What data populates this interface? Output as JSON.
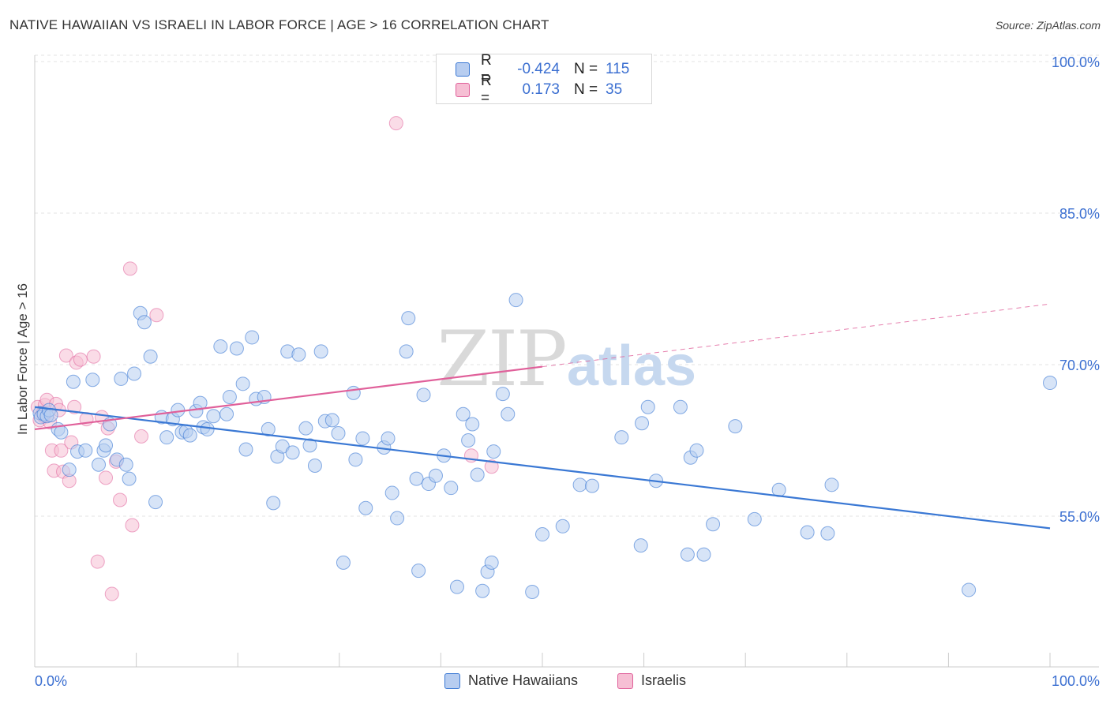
{
  "title": "NATIVE HAWAIIAN VS ISRAELI IN LABOR FORCE | AGE > 16 CORRELATION CHART",
  "source": "Source: ZipAtlas.com",
  "watermark": {
    "zip": "ZIP",
    "atlas": "atlas"
  },
  "colors": {
    "blue": "#3a78d4",
    "blue_fill": "#b7cdf0",
    "pink": "#e0609a",
    "pink_fill": "#f6bfd4",
    "axis_text": "#3b6fd1"
  },
  "legend": {
    "rows": [
      {
        "r_label": "R =",
        "r_value": "-0.424",
        "n_label": "N =",
        "n_value": "115"
      },
      {
        "r_label": "R =",
        "r_value": "0.173",
        "n_label": "N =",
        "n_value": "35"
      }
    ]
  },
  "bottom_legend": {
    "series1": "Native Hawaiians",
    "series2": "Israelis"
  },
  "chart_data": {
    "type": "scatter",
    "title": "NATIVE HAWAIIAN VS ISRAELI IN LABOR FORCE | AGE > 16 CORRELATION CHART",
    "xlabel": "",
    "ylabel": "In Labor Force | Age > 16",
    "xlim": [
      0,
      100
    ],
    "ylim": [
      40,
      102
    ],
    "x_tick_labels": [
      "0.0%",
      "100.0%"
    ],
    "y_tick_labels": [
      "55.0%",
      "70.0%",
      "85.0%",
      "100.0%"
    ],
    "y_ticks": [
      55,
      70,
      85,
      100
    ],
    "grid": true,
    "legend_position": "top-center",
    "series": [
      {
        "name": "Native Hawaiians",
        "r": -0.424,
        "n": 115,
        "trend": {
          "x": [
            0,
            100
          ],
          "y": [
            65.8,
            53.8
          ]
        },
        "points": [
          [
            0.5,
            65.2
          ],
          [
            0.6,
            64.8
          ],
          [
            0.9,
            65.1
          ],
          [
            1.2,
            64.9
          ],
          [
            1.4,
            65.5
          ],
          [
            1.6,
            65.0
          ],
          [
            2.3,
            63.6
          ],
          [
            2.6,
            63.3
          ],
          [
            3.4,
            59.6
          ],
          [
            3.8,
            68.3
          ],
          [
            4.2,
            61.4
          ],
          [
            5.0,
            61.5
          ],
          [
            5.7,
            68.5
          ],
          [
            6.3,
            60.1
          ],
          [
            6.8,
            61.5
          ],
          [
            7.0,
            62.0
          ],
          [
            7.4,
            64.1
          ],
          [
            8.1,
            60.6
          ],
          [
            8.5,
            68.6
          ],
          [
            9.0,
            60.1
          ],
          [
            9.3,
            58.7
          ],
          [
            9.8,
            69.1
          ],
          [
            10.4,
            75.1
          ],
          [
            10.8,
            74.2
          ],
          [
            11.4,
            70.8
          ],
          [
            11.9,
            56.4
          ],
          [
            12.5,
            64.8
          ],
          [
            13.0,
            62.8
          ],
          [
            13.6,
            64.6
          ],
          [
            14.1,
            65.5
          ],
          [
            14.5,
            63.3
          ],
          [
            14.9,
            63.4
          ],
          [
            15.3,
            63.0
          ],
          [
            15.9,
            65.4
          ],
          [
            16.3,
            66.2
          ],
          [
            16.6,
            63.8
          ],
          [
            17.0,
            63.6
          ],
          [
            17.6,
            64.9
          ],
          [
            18.3,
            71.8
          ],
          [
            18.9,
            65.1
          ],
          [
            19.2,
            66.8
          ],
          [
            19.9,
            71.6
          ],
          [
            20.5,
            68.1
          ],
          [
            20.8,
            61.6
          ],
          [
            21.4,
            72.7
          ],
          [
            21.8,
            66.6
          ],
          [
            22.6,
            66.8
          ],
          [
            23.0,
            63.6
          ],
          [
            23.5,
            56.3
          ],
          [
            23.9,
            60.9
          ],
          [
            24.4,
            61.9
          ],
          [
            24.9,
            71.3
          ],
          [
            25.4,
            61.3
          ],
          [
            26.0,
            71.0
          ],
          [
            26.7,
            63.7
          ],
          [
            27.1,
            62.0
          ],
          [
            27.6,
            60.0
          ],
          [
            28.2,
            71.3
          ],
          [
            28.6,
            64.4
          ],
          [
            29.3,
            64.5
          ],
          [
            29.9,
            63.2
          ],
          [
            30.4,
            50.4
          ],
          [
            31.4,
            67.2
          ],
          [
            31.6,
            60.6
          ],
          [
            32.3,
            62.7
          ],
          [
            32.6,
            55.8
          ],
          [
            34.4,
            61.8
          ],
          [
            34.8,
            62.7
          ],
          [
            35.2,
            57.3
          ],
          [
            35.7,
            54.8
          ],
          [
            36.6,
            71.3
          ],
          [
            36.8,
            74.6
          ],
          [
            37.6,
            58.7
          ],
          [
            37.8,
            49.6
          ],
          [
            38.3,
            67.0
          ],
          [
            38.8,
            58.2
          ],
          [
            39.5,
            59.0
          ],
          [
            40.3,
            61.0
          ],
          [
            41.0,
            57.8
          ],
          [
            41.6,
            48.0
          ],
          [
            42.2,
            65.1
          ],
          [
            42.7,
            62.5
          ],
          [
            43.1,
            64.1
          ],
          [
            43.6,
            59.1
          ],
          [
            44.1,
            47.6
          ],
          [
            44.6,
            49.5
          ],
          [
            45.0,
            50.4
          ],
          [
            45.2,
            61.4
          ],
          [
            46.1,
            67.1
          ],
          [
            46.6,
            65.1
          ],
          [
            47.4,
            76.4
          ],
          [
            49.0,
            47.5
          ],
          [
            50.0,
            53.2
          ],
          [
            52.0,
            54.0
          ],
          [
            53.7,
            58.1
          ],
          [
            54.9,
            58.0
          ],
          [
            57.8,
            62.8
          ],
          [
            59.7,
            52.1
          ],
          [
            59.8,
            64.2
          ],
          [
            60.4,
            65.8
          ],
          [
            61.2,
            58.5
          ],
          [
            63.6,
            65.8
          ],
          [
            64.3,
            51.2
          ],
          [
            64.6,
            60.8
          ],
          [
            65.2,
            61.5
          ],
          [
            65.9,
            51.2
          ],
          [
            66.8,
            54.2
          ],
          [
            69.0,
            63.9
          ],
          [
            70.9,
            54.7
          ],
          [
            73.3,
            57.6
          ],
          [
            76.1,
            53.4
          ],
          [
            78.1,
            53.3
          ],
          [
            78.5,
            58.1
          ],
          [
            92.0,
            47.7
          ],
          [
            100.0,
            68.2
          ]
        ]
      },
      {
        "name": "Israelis",
        "r": 0.173,
        "n": 35,
        "trend": {
          "x": [
            0,
            50
          ],
          "y": [
            63.6,
            69.8
          ]
        },
        "trend_dashed": {
          "x": [
            50,
            100
          ],
          "y": [
            69.8,
            76.0
          ]
        },
        "points": [
          [
            0.3,
            65.8
          ],
          [
            0.5,
            64.5
          ],
          [
            0.8,
            65.2
          ],
          [
            1.0,
            66.0
          ],
          [
            1.2,
            66.5
          ],
          [
            1.5,
            64.3
          ],
          [
            1.7,
            61.5
          ],
          [
            1.9,
            59.5
          ],
          [
            2.1,
            66.1
          ],
          [
            2.4,
            65.5
          ],
          [
            2.6,
            61.5
          ],
          [
            2.8,
            59.4
          ],
          [
            3.1,
            70.9
          ],
          [
            3.4,
            58.5
          ],
          [
            3.6,
            62.3
          ],
          [
            3.9,
            65.8
          ],
          [
            4.1,
            70.2
          ],
          [
            4.5,
            70.5
          ],
          [
            5.1,
            64.6
          ],
          [
            5.8,
            70.8
          ],
          [
            6.2,
            50.5
          ],
          [
            6.6,
            64.8
          ],
          [
            7.0,
            58.8
          ],
          [
            7.2,
            63.7
          ],
          [
            7.6,
            47.3
          ],
          [
            8.0,
            60.4
          ],
          [
            8.4,
            56.6
          ],
          [
            9.4,
            79.5
          ],
          [
            9.6,
            54.1
          ],
          [
            10.5,
            62.9
          ],
          [
            12.0,
            74.9
          ],
          [
            35.6,
            93.9
          ],
          [
            43.0,
            61.0
          ],
          [
            45.0,
            59.9
          ],
          [
            0.9,
            64.9
          ]
        ]
      }
    ]
  }
}
